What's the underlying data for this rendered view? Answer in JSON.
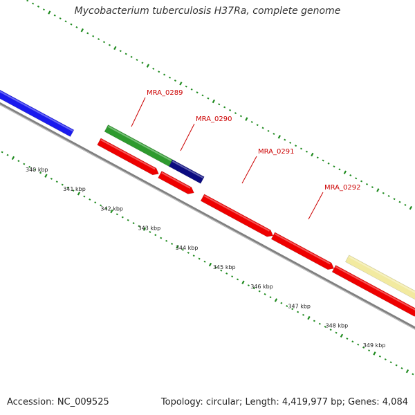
{
  "title": "Mycobacterium tuberculosis H37Ra, complete genome",
  "footer": {
    "accession": "Accession: NC_009525",
    "summary": "Topology: circular; Length: 4,419,977 bp; Genes: 4,084"
  },
  "colors": {
    "backbone": "#808080",
    "tick": "#1e8a1e",
    "label": "#cc0000",
    "scale_text": "#222222"
  },
  "scale_labels": [
    "340 kbp",
    "341 kbp",
    "342 kbp",
    "343 kbp",
    "344 kbp",
    "345 kbp",
    "346 kbp",
    "347 kbp",
    "348 kbp",
    "349 kbp"
  ],
  "gene_labels": [
    {
      "name": "MRA_0289"
    },
    {
      "name": "MRA_0290"
    },
    {
      "name": "MRA_0291"
    },
    {
      "name": "MRA_0292"
    }
  ],
  "features": [
    {
      "id": "blue-feature",
      "color": "#1a1aee",
      "strand": "outer"
    },
    {
      "id": "MRA_0289",
      "color": "#2e9a2e",
      "strand": "forward"
    },
    {
      "id": "MRA_0290",
      "color": "#0a0a80",
      "strand": "forward"
    },
    {
      "id": "MRA_0288-cds",
      "color": "#ee0000",
      "strand": "forward"
    },
    {
      "id": "MRA_0289-cds",
      "color": "#ee0000",
      "strand": "forward"
    },
    {
      "id": "MRA_0291-cds",
      "color": "#ee0000",
      "strand": "forward"
    },
    {
      "id": "MRA_0292-cds-a",
      "color": "#ee0000",
      "strand": "forward"
    },
    {
      "id": "MRA_0292-cds-b",
      "color": "#ee0000",
      "strand": "forward"
    },
    {
      "id": "MRA_0293",
      "color": "#f2eaa0",
      "strand": "forward"
    }
  ]
}
